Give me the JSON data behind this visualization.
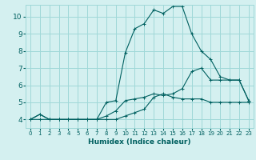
{
  "xlabel": "Humidex (Indice chaleur)",
  "ylabel": "",
  "bg_color": "#d4f0f0",
  "grid_color": "#a0d8d8",
  "line_color": "#006060",
  "xlim": [
    -0.5,
    23.5
  ],
  "ylim": [
    3.5,
    10.7
  ],
  "yticks": [
    4,
    5,
    6,
    7,
    8,
    9,
    10
  ],
  "xticks": [
    0,
    1,
    2,
    3,
    4,
    5,
    6,
    7,
    8,
    9,
    10,
    11,
    12,
    13,
    14,
    15,
    16,
    17,
    18,
    19,
    20,
    21,
    22,
    23
  ],
  "series1_x": [
    0,
    1,
    2,
    3,
    4,
    5,
    6,
    7,
    8,
    9,
    10,
    11,
    12,
    13,
    14,
    15,
    16,
    17,
    18,
    19,
    20,
    21,
    22,
    23
  ],
  "series1_y": [
    4.0,
    4.3,
    4.0,
    4.0,
    4.0,
    4.0,
    4.0,
    4.0,
    4.0,
    4.0,
    4.2,
    4.4,
    4.6,
    5.3,
    5.5,
    5.3,
    5.2,
    5.2,
    5.2,
    5.0,
    5.0,
    5.0,
    5.0,
    5.0
  ],
  "series2_x": [
    0,
    1,
    2,
    3,
    4,
    5,
    6,
    7,
    8,
    9,
    10,
    11,
    12,
    13,
    14,
    15,
    16,
    17,
    18,
    19,
    20,
    21,
    22,
    23
  ],
  "series2_y": [
    4.0,
    4.0,
    4.0,
    4.0,
    4.0,
    4.0,
    4.0,
    4.0,
    4.2,
    4.5,
    5.1,
    5.2,
    5.3,
    5.5,
    5.4,
    5.5,
    5.8,
    6.8,
    7.0,
    6.3,
    6.3,
    6.3,
    6.3,
    5.1
  ],
  "series3_x": [
    0,
    1,
    2,
    3,
    4,
    5,
    6,
    7,
    8,
    9,
    10,
    11,
    12,
    13,
    14,
    15,
    16,
    17,
    18,
    19,
    20,
    21,
    22,
    23
  ],
  "series3_y": [
    4.0,
    4.3,
    4.0,
    4.0,
    4.0,
    4.0,
    4.0,
    4.0,
    5.0,
    5.1,
    7.9,
    9.3,
    9.6,
    10.4,
    10.2,
    10.6,
    10.6,
    9.0,
    8.0,
    7.5,
    6.5,
    6.3,
    6.3,
    5.1
  ]
}
